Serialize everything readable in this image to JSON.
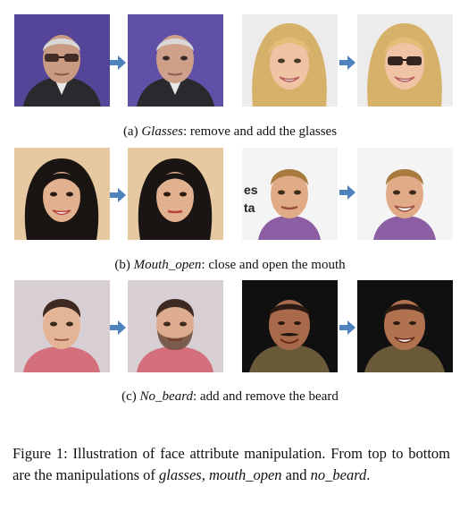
{
  "rows": [
    {
      "label": "(a)",
      "attribute": "Glasses",
      "description": ": remove and add the glasses",
      "pairs": [
        {
          "before": "man-with-sunglasses",
          "after": "man-without-sunglasses"
        },
        {
          "before": "blonde-woman-without-glasses",
          "after": "blonde-woman-with-glasses"
        }
      ]
    },
    {
      "label": "(b)",
      "attribute": "Mouth_open",
      "description": ": close and open the mouth",
      "pairs": [
        {
          "before": "woman-mouth-open",
          "after": "woman-mouth-closed"
        },
        {
          "before": "man-mouth-closed",
          "after": "man-mouth-open"
        }
      ]
    },
    {
      "label": "(c)",
      "attribute": "No_beard",
      "description": ": add and remove the beard",
      "pairs": [
        {
          "before": "man-no-beard",
          "after": "man-with-beard"
        },
        {
          "before": "man-with-mustache",
          "after": "man-mustache-removed"
        }
      ]
    }
  ],
  "figure_caption": {
    "lead": "Figure 1: Illustration of face attribute manipulation. From top to bottom are the manipulations of ",
    "term1": "glasses",
    "sep1": ", ",
    "term2": "mouth_open",
    "sep2": " and ",
    "term3": "no_beard",
    "end": "."
  },
  "colors": {
    "arrow": "#4f81bd",
    "purple_bg": "#5a4aa0",
    "white_bg": "#f2f2f2"
  }
}
